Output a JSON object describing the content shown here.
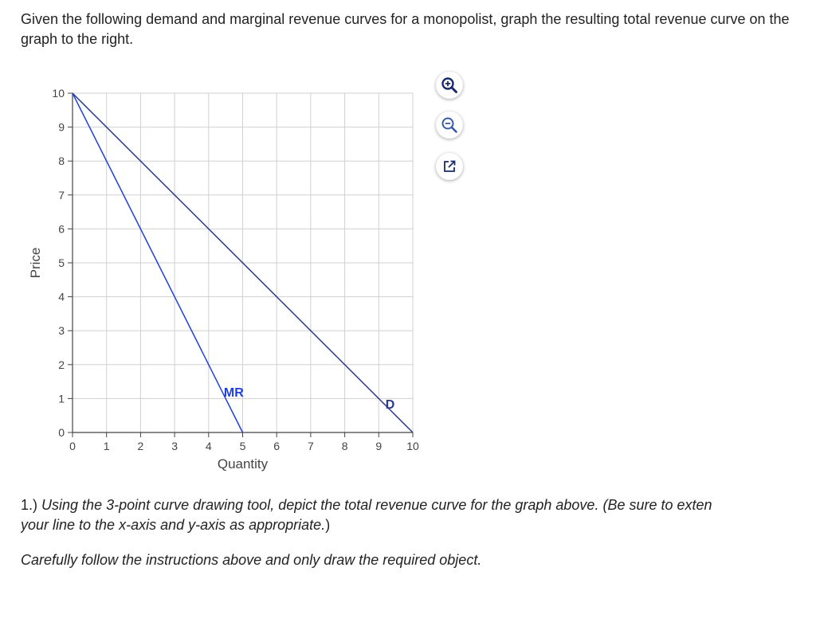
{
  "question": {
    "text": "Given the following demand and marginal revenue curves for a monopolist, graph the resulting total revenue curve on the graph to the right."
  },
  "chart_data": {
    "type": "line",
    "xlabel": "Quantity",
    "ylabel": "Price",
    "xlim": [
      0,
      10
    ],
    "ylim": [
      0,
      10
    ],
    "x_ticks": [
      0,
      1,
      2,
      3,
      4,
      5,
      6,
      7,
      8,
      9,
      10
    ],
    "y_ticks": [
      0,
      1,
      2,
      3,
      4,
      5,
      6,
      7,
      8,
      9,
      10
    ],
    "grid": true,
    "series": [
      {
        "name": "D",
        "color": "#2b3a8c",
        "points": [
          [
            0,
            10
          ],
          [
            10,
            0
          ]
        ]
      },
      {
        "name": "MR",
        "color": "#1f3fe0",
        "points": [
          [
            0,
            10
          ],
          [
            5,
            0
          ]
        ]
      }
    ]
  },
  "toolbar": {
    "zoom_in_icon": "zoom-in-icon",
    "zoom_out_icon": "zoom-out-icon",
    "popout_icon": "popout-icon"
  },
  "instructions": {
    "line1_num": "1.)",
    "line1_part1": "Using the 3-point curve drawing tool, depict the total revenue curve for the graph above. (",
    "line1_part2": "Be sure to exten",
    "line2_part1": "your line to the x-axis and y-axis as appropriate.",
    "line2_part2": ")",
    "line3": "Carefully follow the instructions above and only draw the required object."
  }
}
